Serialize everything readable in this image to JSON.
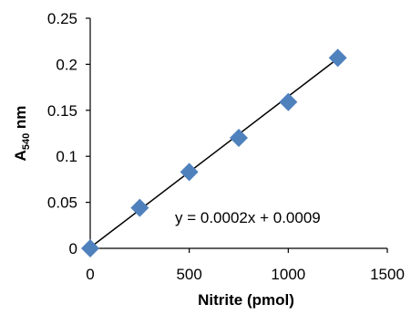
{
  "chart_data": {
    "type": "scatter",
    "title": "",
    "xlabel": "Nitrite (pmol)",
    "ylabel_main": "A",
    "ylabel_subscript": "540",
    "ylabel_unit": " nm",
    "xlim": [
      0,
      1500
    ],
    "ylim": [
      0,
      0.25
    ],
    "x_ticks": [
      0,
      500,
      1000,
      1500
    ],
    "y_ticks": [
      0,
      0.05,
      0.1,
      0.15,
      0.2,
      0.25
    ],
    "x_tick_labels": [
      "0",
      "500",
      "1000",
      "1500"
    ],
    "y_tick_labels": [
      "0",
      "0.05",
      "0.1",
      "0.15",
      "0.2",
      "0.25"
    ],
    "grid": false,
    "legend": "none",
    "points": [
      {
        "x": 0,
        "y": 0
      },
      {
        "x": 250,
        "y": 0.044
      },
      {
        "x": 500,
        "y": 0.083
      },
      {
        "x": 750,
        "y": 0.12
      },
      {
        "x": 1000,
        "y": 0.159
      },
      {
        "x": 1250,
        "y": 0.207
      }
    ],
    "trendline": {
      "equation": "y = 0.0002x + 0.0009",
      "x_range": [
        0,
        1250
      ],
      "y_range": [
        0.0009,
        0.2062
      ]
    },
    "marker_color": "#4F81BD",
    "marker_shape": "diamond",
    "trendline_color": "#000000",
    "axis_color": "#000000"
  }
}
